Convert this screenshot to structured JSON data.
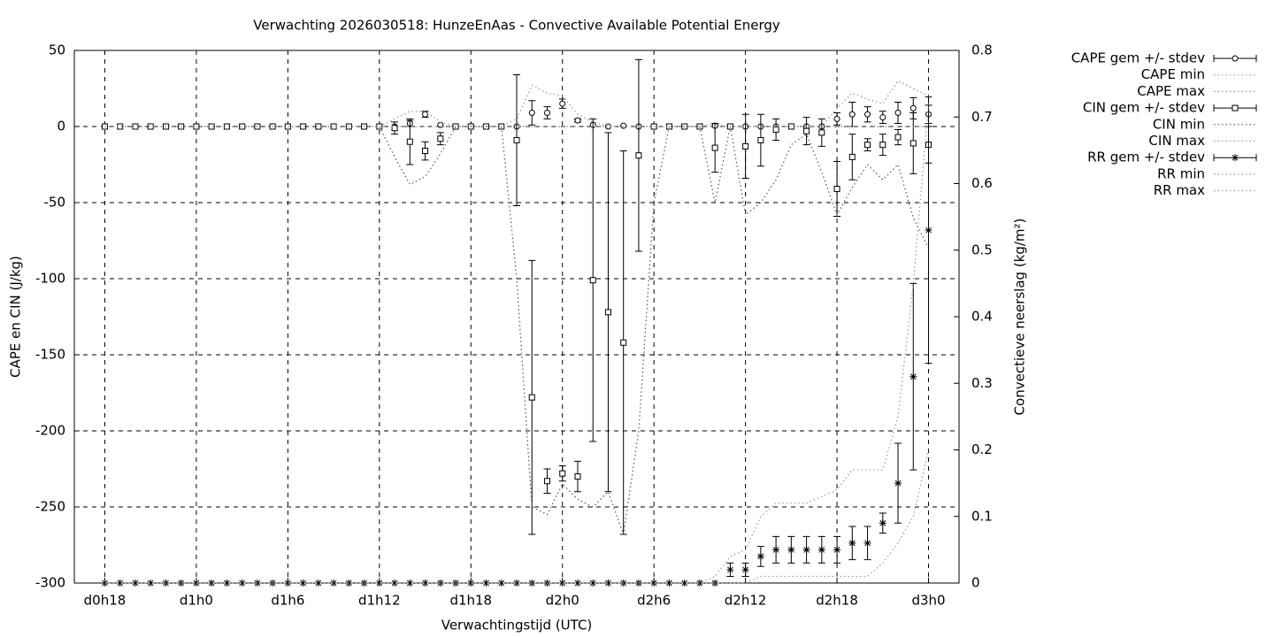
{
  "chart_data": {
    "type": "errorbar-line",
    "title": "Verwachting 2026030518: HunzeEnAas - Convective Available Potential Energy",
    "x_label": "Verwachtingstijd (UTC)",
    "y_label": "CAPE en CIN (J/kg)",
    "y2_label": "Convectieve neerslag (kg/m²)",
    "x": [
      18,
      19,
      20,
      21,
      22,
      23,
      24,
      25,
      26,
      27,
      28,
      29,
      30,
      31,
      32,
      33,
      34,
      35,
      36,
      37,
      38,
      39,
      40,
      41,
      42,
      43,
      44,
      45,
      46,
      47,
      48,
      49,
      50,
      51,
      52,
      53,
      54,
      55,
      56,
      57,
      58,
      59,
      60,
      61,
      62,
      63,
      64,
      65,
      66,
      67,
      68,
      69,
      70,
      71,
      72
    ],
    "xlim": [
      16,
      74
    ],
    "xticks": [
      {
        "value": 18,
        "label": "d0h18"
      },
      {
        "value": 24,
        "label": "d1h0"
      },
      {
        "value": 30,
        "label": "d1h6"
      },
      {
        "value": 36,
        "label": "d1h12"
      },
      {
        "value": 42,
        "label": "d1h18"
      },
      {
        "value": 48,
        "label": "d2h0"
      },
      {
        "value": 54,
        "label": "d2h6"
      },
      {
        "value": 60,
        "label": "d2h12"
      },
      {
        "value": 66,
        "label": "d2h18"
      },
      {
        "value": 72,
        "label": "d3h0"
      }
    ],
    "ylim": [
      -300,
      50
    ],
    "yticks": [
      -300,
      -250,
      -200,
      -150,
      -100,
      -50,
      0,
      50
    ],
    "y2lim": [
      0,
      0.8
    ],
    "y2ticks": [
      0,
      0.1,
      0.2,
      0.3,
      0.4,
      0.5,
      0.6,
      0.7,
      0.8
    ],
    "grid": true,
    "legend": "outside-top-right",
    "series": [
      {
        "name": "CAPE gem +/- stdev",
        "color": "#000000",
        "marker": "circle",
        "values": [
          0,
          0,
          0,
          0,
          0,
          0,
          0,
          0,
          0,
          0,
          0,
          0,
          0,
          0,
          0,
          0,
          0,
          0,
          0,
          0,
          2,
          8,
          1,
          0,
          0,
          0,
          0,
          0,
          9,
          9,
          15,
          4,
          1,
          0,
          0.5,
          0,
          0,
          0,
          0,
          0,
          0.5,
          0,
          0,
          0,
          0,
          0,
          0,
          0,
          5,
          8,
          8,
          6,
          9,
          12,
          8
        ],
        "errors": [
          0,
          0,
          0,
          0,
          0,
          0,
          0,
          0,
          0,
          0,
          0,
          0,
          0,
          0,
          0,
          0,
          0,
          0,
          0,
          0,
          2,
          2,
          0,
          0,
          0,
          0,
          0,
          0,
          8,
          4,
          3,
          1,
          0,
          0,
          0,
          0,
          0,
          0,
          0,
          0,
          0,
          0,
          0,
          0,
          0,
          0,
          0,
          0,
          4,
          8,
          5,
          4,
          7,
          7,
          6
        ]
      },
      {
        "name": "CAPE min",
        "color": "#999999",
        "dash": "dotted",
        "values": [
          0,
          0,
          0,
          0,
          0,
          0,
          0,
          0,
          0,
          0,
          0,
          0,
          0,
          0,
          0,
          0,
          0,
          0,
          0,
          0,
          0,
          0,
          0,
          0,
          0,
          0,
          0,
          0,
          0,
          0,
          0,
          0,
          0,
          0,
          0,
          0,
          0,
          0,
          0,
          0,
          0,
          0,
          0,
          0,
          0,
          0,
          0,
          0,
          0,
          0,
          0,
          0,
          0,
          0,
          0
        ]
      },
      {
        "name": "CAPE max",
        "color": "#999999",
        "dash": "dotted",
        "values": [
          0,
          0,
          0,
          0,
          0,
          0,
          0,
          0,
          0,
          0,
          0,
          0,
          0,
          0,
          0,
          0,
          0,
          0,
          0,
          5,
          10,
          10,
          3,
          0,
          0,
          0,
          0,
          5,
          27,
          22,
          20,
          8,
          3,
          0,
          0,
          0,
          0,
          0,
          0,
          0,
          2,
          0,
          0,
          0,
          0,
          0,
          0,
          0,
          12,
          22,
          18,
          15,
          30,
          25,
          20
        ]
      },
      {
        "name": "CIN gem +/- stdev",
        "color": "#000000",
        "marker": "square",
        "values": [
          0,
          0,
          0,
          0,
          0,
          0,
          0,
          0,
          0,
          0,
          0,
          0,
          0,
          0,
          0,
          0,
          0,
          0,
          0,
          -1,
          -10,
          -16,
          -8,
          0,
          0,
          0,
          0,
          -9,
          -178,
          -233,
          -228,
          -230,
          -101,
          -122,
          -142,
          -19,
          0,
          0,
          0,
          0,
          -14,
          0,
          -13,
          -9,
          -2,
          0,
          -3,
          -4,
          -41,
          -20,
          -12,
          -12,
          -7,
          -11,
          -12
        ],
        "errors": [
          0,
          0,
          0,
          0,
          0,
          0,
          0,
          0,
          0,
          0,
          0,
          0,
          0,
          0,
          0,
          0,
          0,
          0,
          0,
          4,
          15,
          6,
          4,
          0,
          0,
          0,
          0,
          43,
          90,
          8,
          5,
          10,
          106,
          118,
          126,
          63,
          0,
          0,
          0,
          0,
          16,
          0,
          21,
          17,
          7,
          0,
          9,
          9,
          18,
          15,
          4,
          7,
          5,
          20,
          12
        ]
      },
      {
        "name": "CIN min",
        "color": "#555555",
        "dash": "dotted",
        "values": [
          0,
          0,
          0,
          0,
          0,
          0,
          0,
          0,
          0,
          0,
          0,
          0,
          0,
          0,
          0,
          0,
          0,
          0,
          0,
          -20,
          -38,
          -33,
          -18,
          0,
          0,
          0,
          0,
          -100,
          -250,
          -255,
          -235,
          -245,
          -250,
          -240,
          -268,
          -200,
          -50,
          0,
          0,
          0,
          -50,
          0,
          -58,
          -50,
          -35,
          -12,
          -5,
          -30,
          -58,
          -40,
          -25,
          -35,
          -25,
          -60,
          -80
        ]
      },
      {
        "name": "CIN max",
        "color": "#999999",
        "dash": "dotted",
        "values": [
          0,
          0,
          0,
          0,
          0,
          0,
          0,
          0,
          0,
          0,
          0,
          0,
          0,
          0,
          0,
          0,
          0,
          0,
          0,
          0,
          0,
          0,
          0,
          0,
          0,
          0,
          0,
          0,
          0,
          0,
          0,
          0,
          0,
          0,
          0,
          0,
          0,
          0,
          0,
          0,
          0,
          0,
          0,
          0,
          0,
          0,
          0,
          0,
          0,
          0,
          0,
          0,
          0,
          0,
          0
        ]
      },
      {
        "name": "RR gem +/- stdev",
        "color": "#000000",
        "marker": "star",
        "axis": "y2",
        "values": [
          0,
          0,
          0,
          0,
          0,
          0,
          0,
          0,
          0,
          0,
          0,
          0,
          0,
          0,
          0,
          0,
          0,
          0,
          0,
          0,
          0,
          0,
          0,
          0,
          0,
          0,
          0,
          0,
          0,
          0,
          0,
          0,
          0,
          0,
          0,
          0,
          0,
          0,
          0,
          0,
          0,
          0.02,
          0.02,
          0.04,
          0.05,
          0.05,
          0.05,
          0.05,
          0.05,
          0.06,
          0.06,
          0.09,
          0.15,
          0.31,
          0.53
        ],
        "errors": [
          0,
          0,
          0,
          0,
          0,
          0,
          0,
          0,
          0,
          0,
          0,
          0,
          0,
          0,
          0,
          0,
          0,
          0,
          0,
          0,
          0,
          0,
          0,
          0,
          0,
          0,
          0,
          0,
          0,
          0,
          0,
          0,
          0,
          0,
          0,
          0,
          0,
          0,
          0,
          0,
          0,
          0.01,
          0.01,
          0.015,
          0.02,
          0.02,
          0.02,
          0.02,
          0.02,
          0.025,
          0.025,
          0.015,
          0.06,
          0.14,
          0.2
        ]
      },
      {
        "name": "RR min",
        "color": "#999999",
        "dash": "dotted",
        "axis": "y2",
        "values": [
          0,
          0,
          0,
          0,
          0,
          0,
          0,
          0,
          0,
          0,
          0,
          0,
          0,
          0,
          0,
          0,
          0,
          0,
          0,
          0,
          0,
          0,
          0,
          0,
          0,
          0,
          0,
          0,
          0,
          0,
          0,
          0,
          0,
          0,
          0,
          0,
          0,
          0,
          0,
          0,
          0,
          0,
          0,
          0.01,
          0.01,
          0.01,
          0.01,
          0.01,
          0.01,
          0.01,
          0.01,
          0.03,
          0.06,
          0.1,
          0.2
        ]
      },
      {
        "name": "RR max",
        "color": "#999999",
        "dash": "dotted",
        "axis": "y2",
        "values": [
          0,
          0,
          0,
          0,
          0,
          0,
          0,
          0,
          0,
          0,
          0,
          0,
          0,
          0,
          0,
          0,
          0,
          0,
          0,
          0,
          0,
          0,
          0,
          0,
          0,
          0,
          0,
          0,
          0,
          0,
          0,
          0,
          0,
          0,
          0,
          0,
          0,
          0,
          0,
          0,
          0.01,
          0.04,
          0.05,
          0.1,
          0.12,
          0.12,
          0.12,
          0.13,
          0.14,
          0.17,
          0.17,
          0.17,
          0.25,
          0.45,
          0.72
        ]
      }
    ]
  }
}
